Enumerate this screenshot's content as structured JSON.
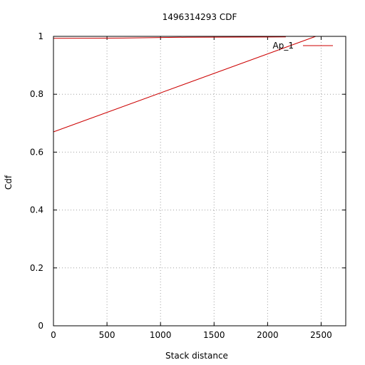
{
  "chart_data": {
    "type": "line",
    "title": "1496314293 CDF",
    "xlabel": "Stack distance",
    "ylabel": "Cdf",
    "xlim": [
      0,
      2730
    ],
    "ylim": [
      0,
      1
    ],
    "xticks": [
      0,
      500,
      1000,
      1500,
      2000,
      2500
    ],
    "yticks": [
      0,
      0.2,
      0.4,
      0.6,
      0.8,
      1
    ],
    "xtick_labels": [
      "0",
      "500",
      "1000",
      "1500",
      "2000",
      "2500"
    ],
    "ytick_labels": [
      "0",
      "0.2",
      "0.4",
      "0.6",
      "0.8",
      "1"
    ],
    "grid": true,
    "legend_position": "top-right",
    "series": [
      {
        "name": "Ap_1",
        "color": "#cc0000",
        "segments": [
          {
            "x": [
              0,
              650,
              1250,
              2170
            ],
            "y": [
              0.993,
              0.994,
              0.997,
              0.998
            ]
          },
          {
            "x": [
              0,
              2450
            ],
            "y": [
              0.67,
              1.0
            ]
          }
        ]
      }
    ]
  }
}
